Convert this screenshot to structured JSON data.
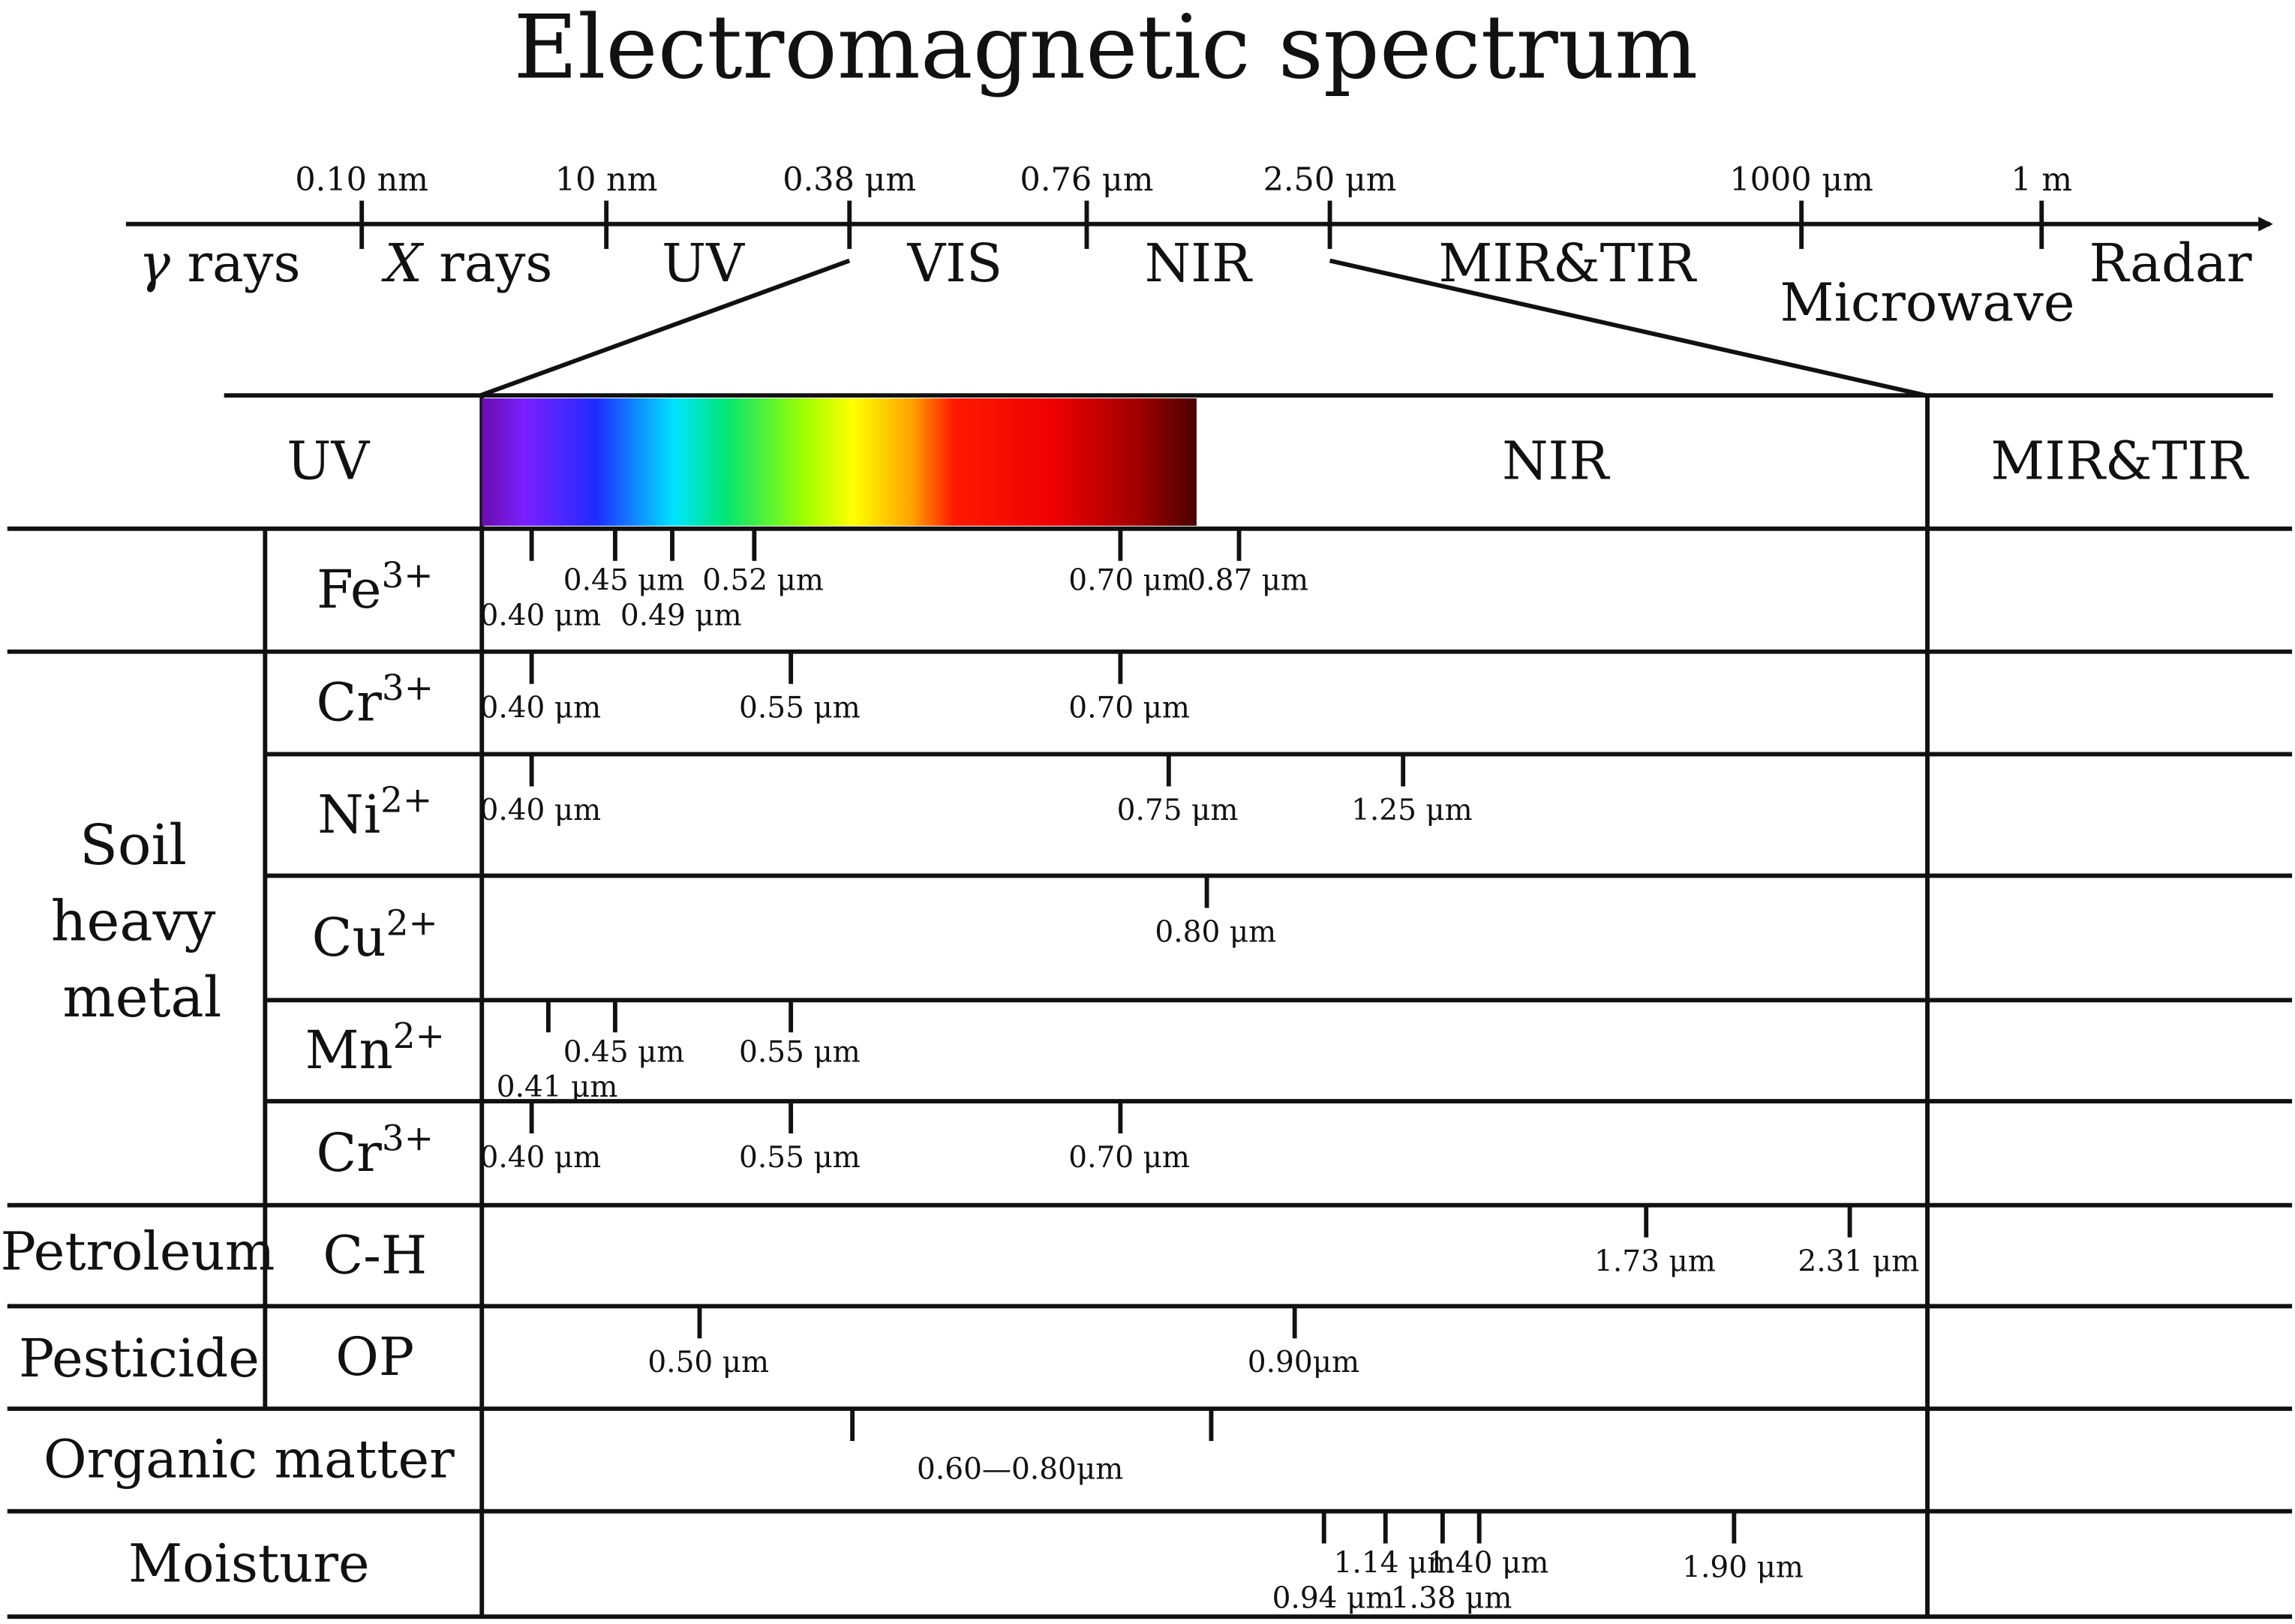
{
  "title": "Electromagnetic spectrum",
  "spectrum_axis": {
    "ticks": [
      "0.10 nm",
      "10 nm",
      "0.38 μm",
      "0.76 μm",
      "2.50 μm",
      "1000 μm",
      "1 m"
    ],
    "bands": [
      "γ rays",
      "X rays",
      "UV",
      "VIS",
      "NIR",
      "MIR&TIR",
      "Microwave",
      "Radar"
    ]
  },
  "zoom_header": {
    "left": "UV",
    "middle": "NIR",
    "right": "MIR&TIR"
  },
  "groups": {
    "soil_heavy_metal": "Soil heavy metal",
    "petroleum": "Petroleum",
    "pesticide": "Pesticide"
  },
  "rows": [
    {
      "base": "Fe",
      "sup": "3+",
      "marks": [
        {
          "um": 0.4,
          "label": "0.40 μm",
          "row": "low"
        },
        {
          "um": 0.45,
          "label": "0.45 μm",
          "row": "high"
        },
        {
          "um": 0.49,
          "label": "0.49 μm",
          "row": "low"
        },
        {
          "um": 0.52,
          "label": "0.52 μm",
          "row": "high"
        },
        {
          "um": 0.7,
          "label": "0.70 μm",
          "row": "high"
        },
        {
          "um": 0.87,
          "label": "0.87 μm",
          "row": "high"
        }
      ]
    },
    {
      "base": "Cr",
      "sup": "3+",
      "marks": [
        {
          "um": 0.4,
          "label": "0.40 μm"
        },
        {
          "um": 0.55,
          "label": "0.55 μm"
        },
        {
          "um": 0.7,
          "label": "0.70 μm"
        }
      ]
    },
    {
      "base": "Ni",
      "sup": "2+",
      "marks": [
        {
          "um": 0.4,
          "label": "0.40 μm"
        },
        {
          "um": 0.75,
          "label": "0.75 μm"
        },
        {
          "um": 1.25,
          "label": "1.25 μm"
        }
      ]
    },
    {
      "base": "Cu",
      "sup": "2+",
      "marks": [
        {
          "um": 0.8,
          "label": "0.80 μm"
        }
      ]
    },
    {
      "base": "Mn",
      "sup": "2+",
      "marks": [
        {
          "um": 0.41,
          "label": "0.41 μm",
          "row": "low"
        },
        {
          "um": 0.45,
          "label": "0.45 μm",
          "row": "high"
        },
        {
          "um": 0.55,
          "label": "0.55 μm",
          "row": "high"
        }
      ]
    },
    {
      "base": "Cr",
      "sup": "3+",
      "marks": [
        {
          "um": 0.4,
          "label": "0.40 μm"
        },
        {
          "um": 0.55,
          "label": "0.55 μm"
        },
        {
          "um": 0.7,
          "label": "0.70 μm"
        }
      ]
    },
    {
      "base": "C-H",
      "sup": "",
      "marks": [
        {
          "um": 1.73,
          "label": "1.73 μm"
        },
        {
          "um": 2.31,
          "label": "2.31 μm"
        }
      ]
    },
    {
      "base": "OP",
      "sup": "",
      "marks": [
        {
          "um": 0.5,
          "label": "0.50 μm"
        },
        {
          "um": 0.9,
          "label": "0.90μm"
        }
      ]
    },
    {
      "base": "Organic matter",
      "sup": "",
      "range": {
        "from": 0.6,
        "to": 0.8,
        "label": "0.60—0.80μm"
      },
      "marks": []
    },
    {
      "base": "Moisture",
      "sup": "",
      "marks": [
        {
          "um": 0.94,
          "label": "0.94 μm",
          "row": "low"
        },
        {
          "um": 1.14,
          "label": "1.14 μm",
          "row": "high"
        },
        {
          "um": 1.38,
          "label": "1.38 μm",
          "row": "low"
        },
        {
          "um": 1.4,
          "label": "1.40 μm",
          "row": "high"
        },
        {
          "um": 1.9,
          "label": "1.90 μm"
        }
      ]
    }
  ]
}
